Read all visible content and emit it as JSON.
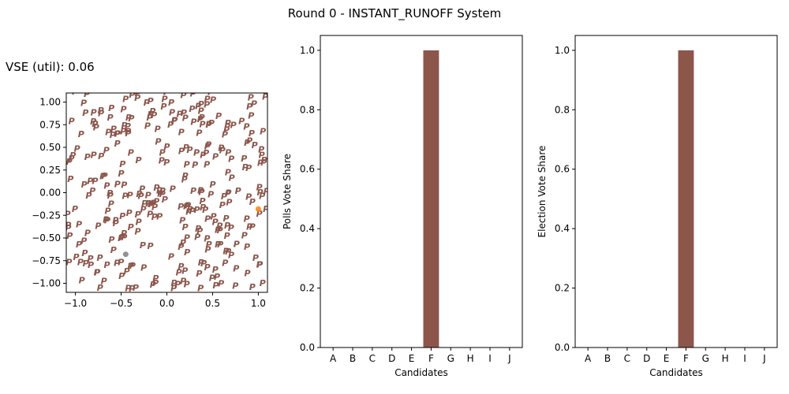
{
  "figure": {
    "title": "Round 0 - INSTANT_RUNOFF System",
    "vse_label": "VSE (util): 0.06"
  },
  "colors": {
    "marker": "#8c564b",
    "bar": "#8c564b",
    "highlight_point": "#ff7f0e",
    "grey_point": "#7f7f7f",
    "axis": "#000000"
  },
  "chart_data": [
    {
      "type": "scatter",
      "title": "",
      "xlabel": "",
      "ylabel": "",
      "marker_text": "P",
      "xlim": [
        -1.1,
        1.1
      ],
      "ylim": [
        -1.1,
        1.1
      ],
      "xticks": [
        "−1.0",
        "−0.5",
        "0.0",
        "0.5",
        "1.0"
      ],
      "yticks": [
        "1.00",
        "0.75",
        "0.50",
        "0.25",
        "0.00",
        "−0.25",
        "−0.50",
        "−0.75",
        "−1.00"
      ],
      "grid": false,
      "highlight_points": [
        {
          "x": 1.0,
          "y": -0.18,
          "color": "#ff7f0e"
        },
        {
          "x": -0.45,
          "y": -0.68,
          "color": "#7f7f7f"
        }
      ]
    },
    {
      "type": "bar",
      "title": "",
      "xlabel": "Candidates",
      "ylabel": "Polls Vote Share",
      "categories": [
        "A",
        "B",
        "C",
        "D",
        "E",
        "F",
        "G",
        "H",
        "I",
        "J"
      ],
      "values": [
        0,
        0,
        0,
        0,
        0,
        1.0,
        0,
        0,
        0,
        0
      ],
      "ylim": [
        0,
        1.05
      ],
      "yticks": [
        "0.0",
        "0.2",
        "0.4",
        "0.6",
        "0.8",
        "1.0"
      ],
      "grid": false
    },
    {
      "type": "bar",
      "title": "",
      "xlabel": "Candidates",
      "ylabel": "Election Vote Share",
      "categories": [
        "A",
        "B",
        "C",
        "D",
        "E",
        "F",
        "G",
        "H",
        "I",
        "J"
      ],
      "values": [
        0,
        0,
        0,
        0,
        0,
        1.0,
        0,
        0,
        0,
        0
      ],
      "ylim": [
        0,
        1.05
      ],
      "yticks": [
        "0.0",
        "0.2",
        "0.4",
        "0.6",
        "0.8",
        "1.0"
      ],
      "grid": false
    }
  ]
}
